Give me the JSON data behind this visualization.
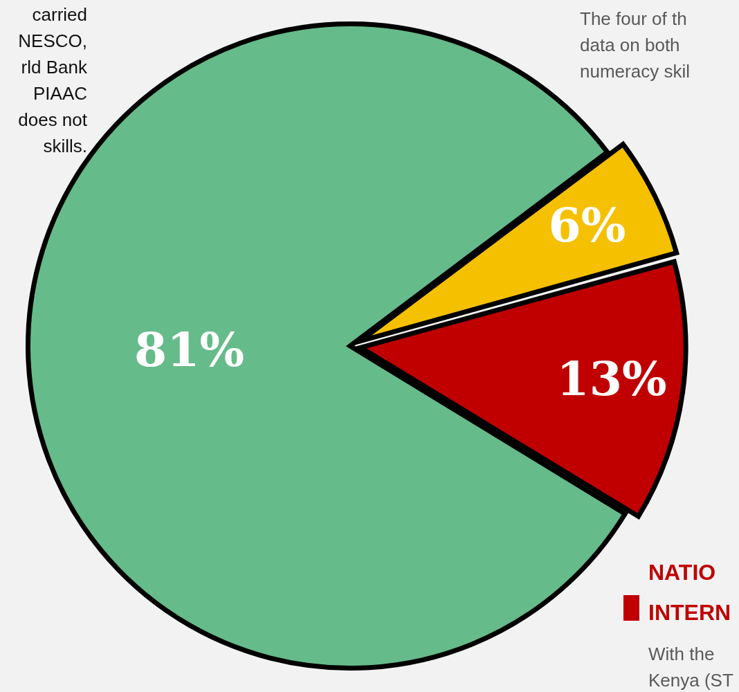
{
  "chart_data": {
    "type": "pie",
    "categories": [
      null,
      null,
      null
    ],
    "values": [
      6,
      13,
      81
    ],
    "colors": [
      "#f5c000",
      "#c00000",
      "#66bb8a"
    ],
    "value_labels": [
      "6%",
      "13%",
      "81%"
    ],
    "legend": false,
    "annotations": [
      "carried\nNESCO,\nrld Bank\nPIAAC\ndoes not\nskills.",
      "The four of th\ndata on both\nnumeracy skil",
      "NATIO\nINTERN",
      "With the\nKenya (ST"
    ]
  }
}
